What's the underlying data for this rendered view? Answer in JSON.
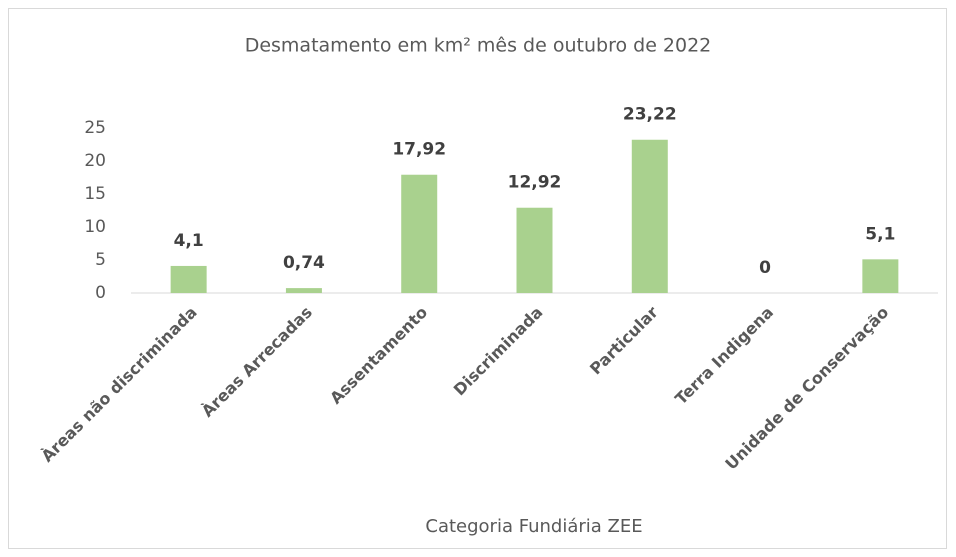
{
  "chart_data": {
    "type": "bar",
    "title": "Desmatamento em km² mês de outubro de 2022",
    "x_label": "Categoria Fundiária ZEE",
    "categories": [
      "Àreas não discriminada",
      "Àreas Arrecadas",
      "Assentamento",
      "Discriminada",
      "Particular",
      "Terra Indigena",
      "Unidade de Conservação"
    ],
    "values": [
      4.1,
      0.74,
      17.92,
      12.92,
      23.22,
      0,
      5.1
    ],
    "value_labels": [
      "4,1",
      "0,74",
      "17,92",
      "12,92",
      "23,22",
      "0",
      "5,1"
    ],
    "color": "#a9d18e",
    "ylim": [
      0,
      25
    ],
    "yticks": [
      0,
      5,
      10,
      15,
      20,
      25
    ],
    "grid": false
  }
}
